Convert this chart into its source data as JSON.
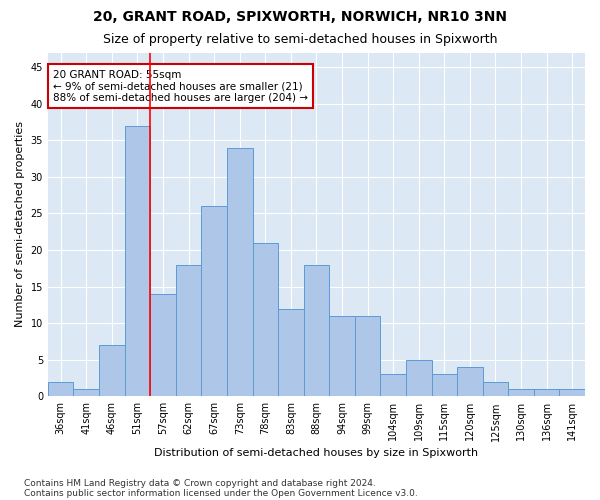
{
  "title_line1": "20, GRANT ROAD, SPIXWORTH, NORWICH, NR10 3NN",
  "title_line2": "Size of property relative to semi-detached houses in Spixworth",
  "xlabel": "Distribution of semi-detached houses by size in Spixworth",
  "ylabel": "Number of semi-detached properties",
  "categories": [
    "36sqm",
    "41sqm",
    "46sqm",
    "51sqm",
    "57sqm",
    "62sqm",
    "67sqm",
    "73sqm",
    "78sqm",
    "83sqm",
    "88sqm",
    "94sqm",
    "99sqm",
    "104sqm",
    "109sqm",
    "115sqm",
    "120sqm",
    "125sqm",
    "130sqm",
    "136sqm",
    "141sqm"
  ],
  "values": [
    2,
    1,
    7,
    37,
    14,
    18,
    26,
    34,
    21,
    12,
    18,
    11,
    11,
    3,
    5,
    3,
    4,
    2,
    1,
    1,
    1
  ],
  "bar_color": "#aec6e8",
  "bar_edge_color": "#5b9bd5",
  "red_line_x": 3.5,
  "annotation_text": "20 GRANT ROAD: 55sqm\n← 9% of semi-detached houses are smaller (21)\n88% of semi-detached houses are larger (204) →",
  "annotation_box_color": "#ffffff",
  "annotation_box_edge": "#cc0000",
  "ylim": [
    0,
    47
  ],
  "yticks": [
    0,
    5,
    10,
    15,
    20,
    25,
    30,
    35,
    40,
    45
  ],
  "background_color": "#dce9f5",
  "grid_color": "#ffffff",
  "footer_line1": "Contains HM Land Registry data © Crown copyright and database right 2024.",
  "footer_line2": "Contains public sector information licensed under the Open Government Licence v3.0.",
  "title_fontsize": 10,
  "subtitle_fontsize": 9,
  "axis_label_fontsize": 8,
  "tick_fontsize": 7,
  "annotation_fontsize": 7.5,
  "footer_fontsize": 6.5
}
